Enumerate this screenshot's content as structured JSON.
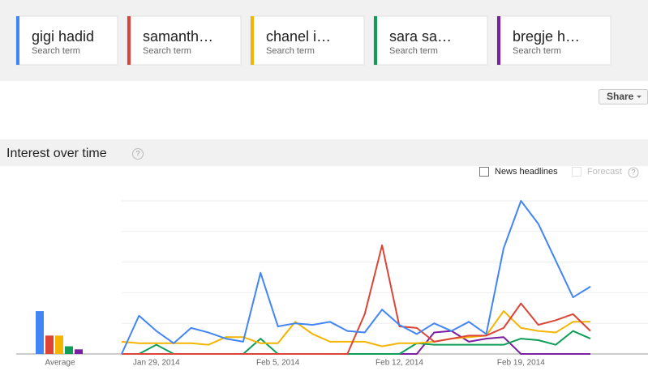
{
  "share": "Share",
  "section_title": "Interest over time",
  "news_headlines": "News headlines",
  "forecast": "Forecast",
  "help": "?",
  "chart_data": {
    "type": "line",
    "term_label": "Search term",
    "average_label": "Average",
    "categories": [
      null,
      null,
      "Jan 29, 2014",
      null,
      null,
      null,
      null,
      null,
      null,
      "Feb 5, 2014",
      null,
      null,
      null,
      null,
      null,
      null,
      "Feb 12, 2014",
      null,
      null,
      null,
      null,
      null,
      null,
      "Feb 19, 2014",
      null,
      null,
      null,
      null
    ],
    "ylim": [
      0,
      100
    ],
    "yticks": [
      0,
      20,
      40,
      60,
      80,
      100
    ],
    "show_ytick_labels": false,
    "grid": true,
    "series": [
      {
        "name": "gigi hadid",
        "color": "#4285f4",
        "average": 28,
        "values": [
          0,
          25,
          15,
          7,
          17,
          14,
          10,
          8,
          53,
          18,
          20,
          19,
          21,
          15,
          14,
          29,
          19,
          13,
          20,
          15,
          21,
          13,
          69,
          100,
          85,
          61,
          37,
          44
        ]
      },
      {
        "name": "samanth…",
        "color": "#db4437",
        "average": 12,
        "values": [
          0,
          0,
          0,
          0,
          0,
          0,
          0,
          0,
          0,
          0,
          0,
          0,
          0,
          0,
          26,
          71,
          18,
          17,
          8,
          10,
          12,
          12,
          17,
          33,
          19,
          22,
          26,
          15
        ]
      },
      {
        "name": "chanel i…",
        "color": "#f4b400",
        "average": 12,
        "values": [
          8,
          7,
          7,
          7,
          7,
          6,
          11,
          11,
          7,
          7,
          21,
          13,
          8,
          8,
          8,
          5,
          7,
          7,
          8,
          10,
          11,
          12,
          28,
          17,
          15,
          14,
          21,
          21
        ]
      },
      {
        "name": "sara sa…",
        "color": "#0f9d58",
        "average": 5,
        "values": [
          0,
          0,
          6,
          0,
          0,
          0,
          0,
          0,
          10,
          0,
          0,
          0,
          0,
          0,
          0,
          0,
          0,
          7,
          6,
          6,
          6,
          6,
          6,
          10,
          9,
          6,
          15,
          10
        ]
      },
      {
        "name": "bregje h…",
        "color": "#7b1fa2",
        "average": 3,
        "values": [
          0,
          0,
          0,
          0,
          0,
          0,
          0,
          0,
          0,
          0,
          0,
          0,
          0,
          0,
          0,
          0,
          0,
          0,
          14,
          15,
          8,
          10,
          11,
          0,
          0,
          0,
          0,
          0
        ]
      }
    ]
  }
}
